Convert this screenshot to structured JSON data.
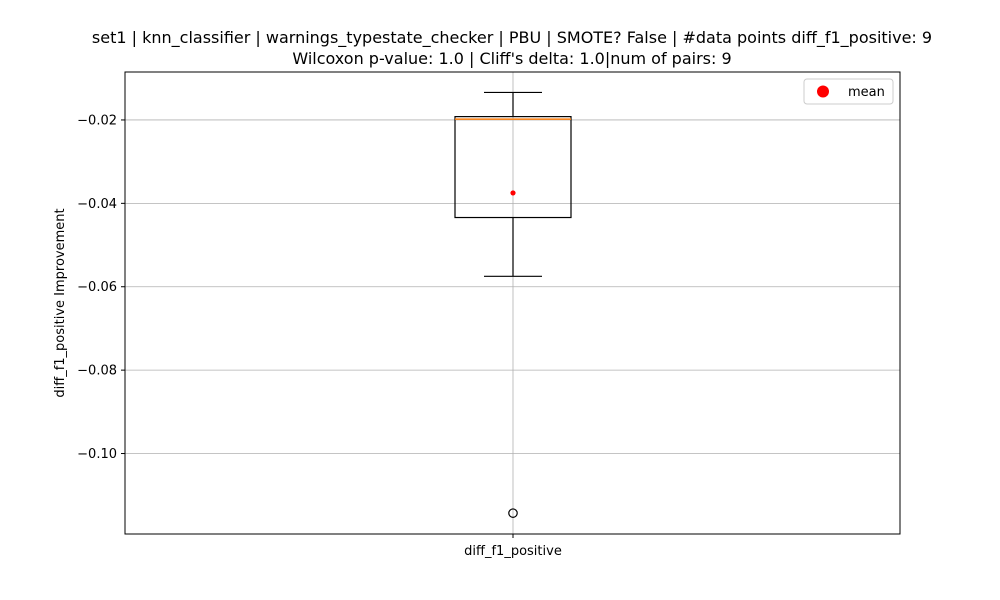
{
  "chart_data": {
    "type": "box",
    "title": "set1 | knn_classifier | warnings_typestate_checker | PBU | SMOTE? False | #data points diff_f1_positive: 9",
    "subtitle": "Wilcoxon p-value: 1.0 | Cliff's delta: 1.0|num of pairs: 9",
    "xlabel": "",
    "ylabel": "diff_f1_positive Improvement",
    "categories": [
      "diff_f1_positive"
    ],
    "ylim": [
      -0.1193,
      -0.0085
    ],
    "yticks": [
      -0.02,
      -0.04,
      -0.06,
      -0.08,
      -0.1
    ],
    "ytick_labels": [
      "−0.02",
      "−0.04",
      "−0.06",
      "−0.08",
      "−0.10"
    ],
    "grid": true,
    "legend": {
      "placement": "top-right",
      "entries": [
        "mean"
      ]
    },
    "series": [
      {
        "category": "diff_f1_positive",
        "whisker_high": -0.0134,
        "q3": -0.0192,
        "median": -0.0198,
        "q1": -0.0434,
        "whisker_low": -0.0575,
        "mean": -0.0375,
        "outliers": [
          -0.1143
        ]
      }
    ],
    "colors": {
      "box": "#000000",
      "median": "#ff7f0e",
      "mean": "#ff0000",
      "grid": "#b0b0b0"
    }
  }
}
